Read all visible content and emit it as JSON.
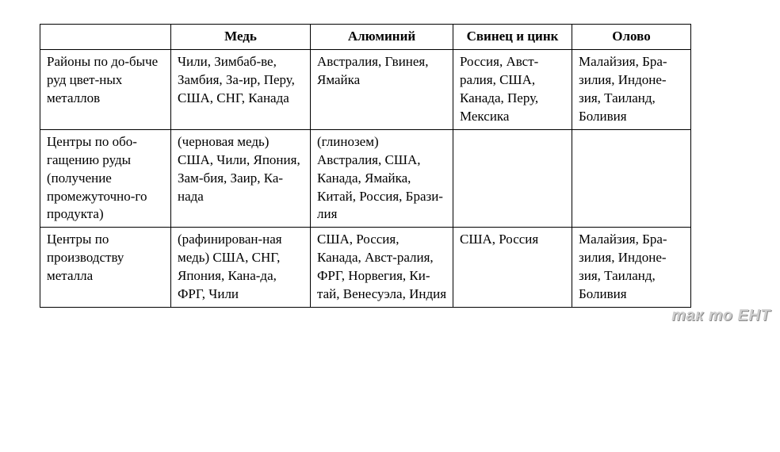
{
  "table": {
    "columns": [
      "",
      "Медь",
      "Алюминий",
      "Свинец и цинк",
      "Олово"
    ],
    "rows": [
      {
        "label": "Районы по до-быче руд цвет-ных металлов",
        "copper": "Чили, Зимбаб-ве, Замбия, За-ир, Перу, США, СНГ, Канада",
        "aluminum": "Австралия, Гвинея, Ямайка",
        "leadzinc": "Россия, Авст-ралия, США, Канада, Перу, Мексика",
        "tin": "Малайзия, Бра-зилия, Индоне-зия, Таиланд, Боливия"
      },
      {
        "label": "Центры по обо-гащению руды (получение промежуточно-го продукта)",
        "copper": "(черновая медь) США, Чили, Япония, Зам-бия, Заир, Ка-нада",
        "aluminum": "(глинозем) Австралия, США, Канада, Ямайка, Китай, Россия, Брази-лия",
        "leadzinc": "",
        "tin": ""
      },
      {
        "label": "Центры по производству металла",
        "copper": "(рафинирован-ная медь) США, СНГ, Япония, Кана-да, ФРГ, Чили",
        "aluminum": "США, Россия, Канада, Авст-ралия, ФРГ, Норвегия, Ки-тай, Венесуэла, Индия",
        "leadzinc": "США, Россия",
        "tin": "Малайзия, Бра-зилия, Индоне-зия, Таиланд, Боливия"
      }
    ]
  },
  "watermark": "так то ЕНТ",
  "style": {
    "font_family": "Times New Roman",
    "header_fontweight": "bold",
    "cell_fontsize": 17,
    "border_color": "#000000",
    "background_color": "#ffffff",
    "watermark_color": "#cfcfcf"
  }
}
